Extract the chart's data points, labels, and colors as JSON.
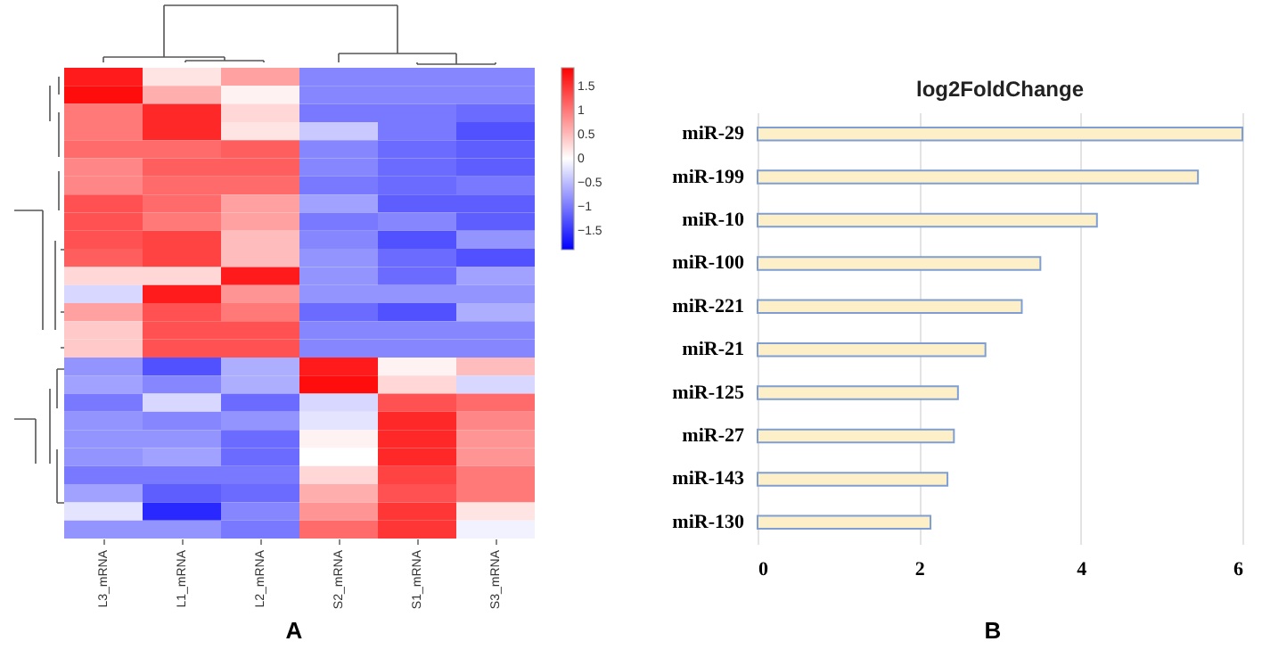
{
  "chart_data": [
    {
      "type": "heatmap",
      "categories": [
        "L3_mRNA",
        "L1_mRNA",
        "L2_mRNA",
        "S2_mRNA",
        "S1_mRNA",
        "S3_mRNA"
      ],
      "y_categories": [
        null,
        null,
        null,
        null,
        null,
        null,
        null,
        null,
        null,
        null,
        null,
        null,
        null,
        null,
        null,
        null,
        null,
        null,
        null,
        null,
        null,
        null,
        null,
        null,
        null,
        null
      ],
      "cells": [
        [
          1.7,
          0.2,
          0.7,
          -0.9,
          -0.9,
          -0.9
        ],
        [
          1.8,
          0.6,
          0.1,
          -0.9,
          -0.9,
          -0.9
        ],
        [
          1.0,
          1.6,
          0.3,
          -1.0,
          -1.0,
          -1.1
        ],
        [
          1.0,
          1.6,
          0.2,
          -0.4,
          -1.0,
          -1.3
        ],
        [
          1.1,
          1.1,
          1.2,
          -0.9,
          -1.1,
          -1.2
        ],
        [
          0.9,
          1.2,
          1.2,
          -0.9,
          -1.1,
          -1.2
        ],
        [
          0.9,
          1.1,
          1.1,
          -1.0,
          -1.1,
          -1.0
        ],
        [
          1.3,
          1.1,
          0.7,
          -0.7,
          -1.2,
          -1.2
        ],
        [
          1.3,
          1.0,
          0.7,
          -1.0,
          -0.9,
          -1.2
        ],
        [
          1.3,
          1.4,
          0.5,
          -0.9,
          -1.3,
          -0.8
        ],
        [
          1.2,
          1.4,
          0.5,
          -0.8,
          -1.1,
          -1.3
        ],
        [
          0.3,
          0.3,
          1.7,
          -0.8,
          -1.1,
          -0.7
        ],
        [
          -0.3,
          1.7,
          0.8,
          -0.8,
          -0.8,
          -0.8
        ],
        [
          0.7,
          1.3,
          1.0,
          -1.1,
          -1.3,
          -0.6
        ],
        [
          0.4,
          1.3,
          1.3,
          -0.9,
          -0.9,
          -0.9
        ],
        [
          0.4,
          1.3,
          1.3,
          -0.9,
          -0.9,
          -0.9
        ],
        [
          -0.8,
          -1.3,
          -0.6,
          1.7,
          0.1,
          0.5
        ],
        [
          -0.7,
          -0.9,
          -0.6,
          1.8,
          0.3,
          -0.3
        ],
        [
          -1.0,
          -0.3,
          -1.1,
          -0.3,
          1.3,
          1.1
        ],
        [
          -0.8,
          -0.9,
          -0.8,
          -0.2,
          1.6,
          0.9
        ],
        [
          -0.8,
          -0.8,
          -1.1,
          0.1,
          1.6,
          0.8
        ],
        [
          -0.8,
          -0.7,
          -1.1,
          0.0,
          1.6,
          0.8
        ],
        [
          -1.0,
          -1.0,
          -1.0,
          0.3,
          1.4,
          1.0
        ],
        [
          -0.7,
          -1.2,
          -1.1,
          0.6,
          1.3,
          1.0
        ],
        [
          -0.2,
          -1.6,
          -0.9,
          0.8,
          1.5,
          0.2
        ],
        [
          -0.8,
          -0.8,
          -1.0,
          1.1,
          1.5,
          -0.1
        ]
      ],
      "clim": [
        -1.9,
        1.9
      ],
      "cticks": [
        -1.5,
        -1,
        -0.5,
        0,
        0.5,
        1,
        1.5
      ],
      "annotations": [
        "A"
      ]
    },
    {
      "type": "bar",
      "orientation": "horizontal",
      "title": "log2FoldChange",
      "categories": [
        "miR-29",
        "miR-199",
        "miR-10",
        "miR-100",
        "miR-221",
        "miR-21",
        "miR-125",
        "miR-27",
        "miR-143",
        "miR-130"
      ],
      "values": [
        6.0,
        5.45,
        4.2,
        3.5,
        3.27,
        2.82,
        2.48,
        2.43,
        2.35,
        2.14
      ],
      "color": "#fdf0c8",
      "xlim": [
        0,
        6
      ],
      "xticks": [
        0,
        2,
        4,
        6
      ],
      "grid": "x",
      "annotations": [
        "B"
      ]
    }
  ]
}
